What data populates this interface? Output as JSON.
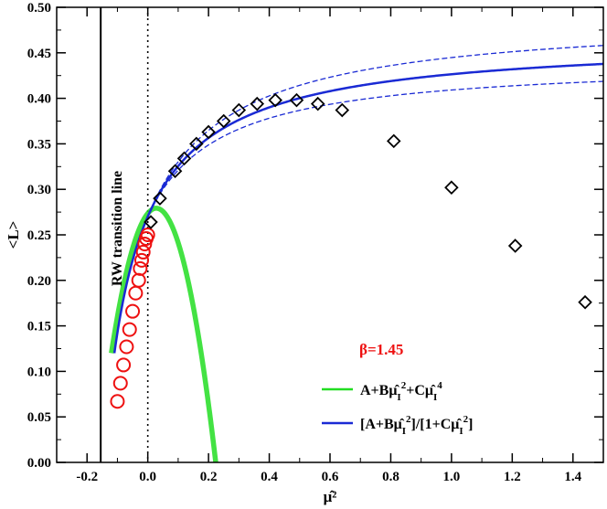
{
  "chart_data": {
    "type": "scatter",
    "xlabel": "μ̂²",
    "ylabel": "<L>",
    "xlim": [
      -0.3,
      1.5
    ],
    "ylim": [
      0,
      0.5
    ],
    "x_ticks": [
      -0.2,
      0,
      0.2,
      0.4,
      0.6,
      0.8,
      1.0,
      1.2,
      1.4
    ],
    "x_tick_labels": [
      "-0.2",
      "0.0",
      "0.2",
      "0.4",
      "0.6",
      "0.8",
      "1.0",
      "1.2",
      "1.4"
    ],
    "y_ticks": [
      0,
      0.05,
      0.1,
      0.15,
      0.2,
      0.25,
      0.3,
      0.35,
      0.4,
      0.45,
      0.5
    ],
    "y_tick_labels": [
      "0.00",
      "0.05",
      "0.10",
      "0.15",
      "0.20",
      "0.25",
      "0.30",
      "0.35",
      "0.40",
      "0.45",
      "0.50"
    ],
    "vertical_lines": [
      {
        "x": -0.155,
        "style": "solid",
        "label": "RW transition line"
      },
      {
        "x": 0.0,
        "style": "dotted"
      }
    ],
    "annotation": {
      "text": "β=1.45",
      "color": "#ee1111"
    },
    "series": [
      {
        "marker": "circle",
        "color": "#ee1111",
        "x": [
          -0.1,
          -0.09,
          -0.08,
          -0.07,
          -0.06,
          -0.05,
          -0.04,
          -0.03,
          -0.025,
          -0.02,
          -0.015,
          -0.01,
          -0.005,
          0.0
        ],
        "y": [
          0.067,
          0.087,
          0.107,
          0.127,
          0.146,
          0.166,
          0.186,
          0.2,
          0.213,
          0.222,
          0.231,
          0.24,
          0.246,
          0.25
        ]
      },
      {
        "marker": "diamond",
        "color": "#000000",
        "x": [
          0.01,
          0.04,
          0.09,
          0.12,
          0.16,
          0.2,
          0.25,
          0.3,
          0.36,
          0.42,
          0.49,
          0.56,
          0.64,
          0.81,
          1.0,
          1.21,
          1.44
        ],
        "y": [
          0.264,
          0.29,
          0.32,
          0.334,
          0.35,
          0.363,
          0.375,
          0.387,
          0.394,
          0.398,
          0.398,
          0.394,
          0.387,
          0.353,
          0.302,
          0.238,
          0.176
        ]
      }
    ],
    "fits": [
      {
        "name": "A+Bμ̂_I²+Cμ̂_I⁴",
        "legend_main": "A+Bμ̂",
        "color": "#22dd22",
        "form": "poly",
        "params": {
          "A": 0.2736,
          "B": 0.4064,
          "C": -7.28
        }
      },
      {
        "name": "[A+Bμ̂_I²]/[1+Cμ̂_I²]",
        "legend_main": "[A+Bμ̂",
        "color": "#1a2ad4",
        "form": "pade",
        "params": {
          "A": 0.2701,
          "B": 1.8375,
          "C": 3.942
        }
      }
    ]
  }
}
